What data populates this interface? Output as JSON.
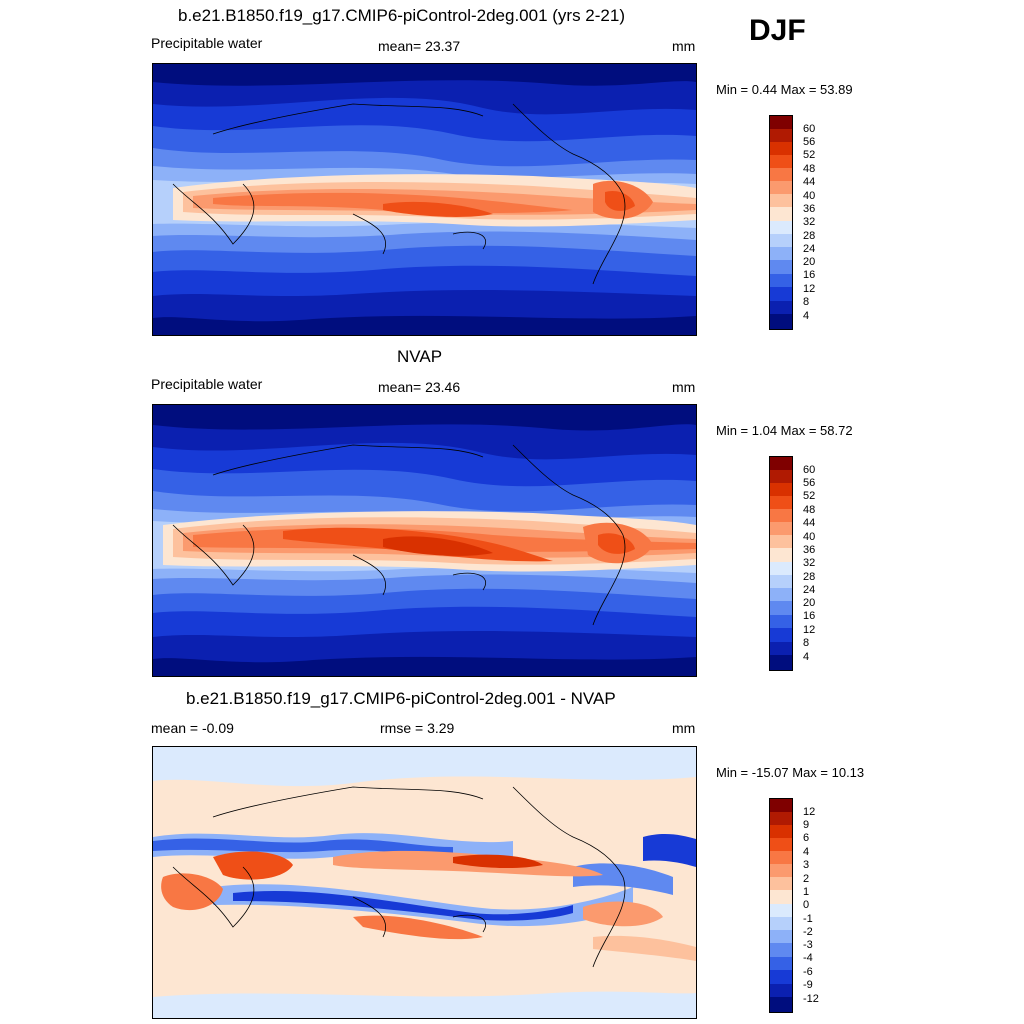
{
  "season": "DJF",
  "panels": [
    {
      "title": "b.e21.B1850.f19_g17.CMIP6-piControl-2deg.001 (yrs 2-21)",
      "left_label": "Precipitable water",
      "center_label": "mean=  23.37",
      "units": "mm",
      "minmax": "Min =   0.44 Max =  53.89",
      "colorbar_labels": [
        "60",
        "56",
        "52",
        "48",
        "44",
        "40",
        "36",
        "32",
        "28",
        "24",
        "20",
        "16",
        "12",
        "8",
        "4"
      ]
    },
    {
      "title": "NVAP",
      "left_label": "Precipitable water",
      "center_label": "mean=  23.46",
      "units": "mm",
      "minmax": "Min =   1.04 Max =  58.72",
      "colorbar_labels": [
        "60",
        "56",
        "52",
        "48",
        "44",
        "40",
        "36",
        "32",
        "28",
        "24",
        "20",
        "16",
        "12",
        "8",
        "4"
      ]
    },
    {
      "title": "b.e21.B1850.f19_g17.CMIP6-piControl-2deg.001 - NVAP",
      "left_label": "mean =  -0.09",
      "center_label": "rmse =   3.29",
      "units": "mm",
      "minmax": "Min = -15.07 Max =  10.13",
      "colorbar_labels": [
        "12",
        "9",
        "6",
        "4",
        "3",
        "2",
        "1",
        "0",
        "-1",
        "-2",
        "-3",
        "-4",
        "-6",
        "-9",
        "-12"
      ]
    }
  ],
  "colors": {
    "sequential": [
      "#7f0000",
      "#b01a02",
      "#d93100",
      "#ef4f17",
      "#f87744",
      "#fb9a6e",
      "#fdc19d",
      "#fde6d2",
      "#dbeafd",
      "#b6d0fb",
      "#8db1f8",
      "#5f89f0",
      "#3561e6",
      "#173ad6",
      "#0b20b0",
      "#000d7e"
    ],
    "diverging": [
      "#7f0000",
      "#b01a02",
      "#d93100",
      "#ef4f17",
      "#f87744",
      "#fb9a6e",
      "#fdc19d",
      "#fde6d2",
      "#dbeafd",
      "#b6d0fb",
      "#8db1f8",
      "#5f89f0",
      "#3561e6",
      "#173ad6",
      "#0b20b0",
      "#000d7e"
    ]
  }
}
